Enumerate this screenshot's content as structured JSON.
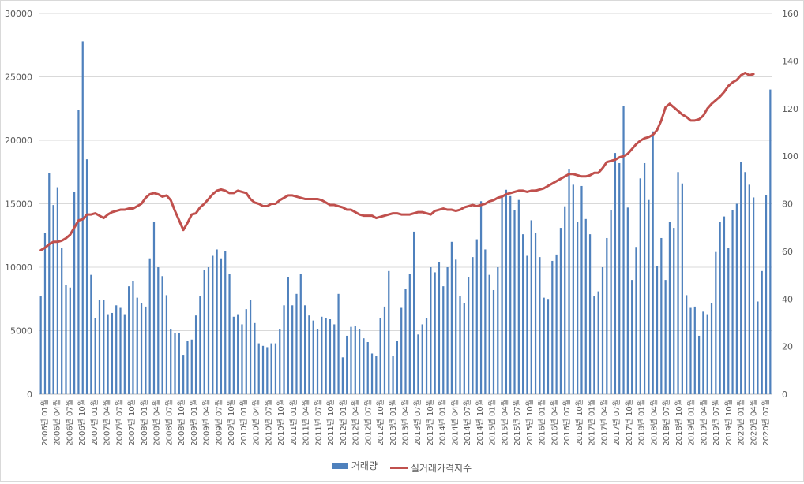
{
  "chart_data": {
    "type": "bar",
    "left_axis": {
      "ylim": [
        0,
        30000
      ],
      "ticks": [
        "0",
        "5000",
        "10000",
        "15000",
        "20000",
        "25000",
        "30000"
      ]
    },
    "right_axis": {
      "ylim": [
        0,
        160
      ],
      "ticks": [
        "0",
        "20",
        "40",
        "60",
        "80",
        "100",
        "120",
        "140",
        "160"
      ]
    },
    "grid": true,
    "legend_position": "bottom",
    "bar_color": "#4f81bd",
    "line_color": "#c0504d",
    "x_labels": [
      "2006년 01월",
      "2006년 04월",
      "2006년 07월",
      "2006년 10월",
      "2007년 01월",
      "2007년 04월",
      "2007년 07월",
      "2007년 10월",
      "2008년 01월",
      "2008년 04월",
      "2008년 07월",
      "2008년 10월",
      "2009년 01월",
      "2009년 04월",
      "2009년 07월",
      "2009년 10월",
      "2010년 01월",
      "2010년 04월",
      "2010년 07월",
      "2010년 10월",
      "2011년 01월",
      "2011년 04월",
      "2011년 07월",
      "2011년 10월",
      "2012년 01월",
      "2012년 04월",
      "2012년 07월",
      "2012년 10월",
      "2013년 01월",
      "2013년 04월",
      "2013년 07월",
      "2013년 10월",
      "2014년 01월",
      "2014년 04월",
      "2014년 07월",
      "2014년 10월",
      "2015년 01월",
      "2015년 04월",
      "2015년 07월",
      "2015년 10월",
      "2016년 01월",
      "2016년 04월",
      "2016년 07월",
      "2016년 10월",
      "2017년 01월",
      "2017년 04월",
      "2017년 07월",
      "2017년 10월",
      "2018년 01월",
      "2018년 04월",
      "2018년 07월",
      "2018년 10월",
      "2019년 01월",
      "2019년 04월",
      "2019년 07월",
      "2019년 10월",
      "2020년 01월",
      "2020년 04월",
      "2020년 07월"
    ],
    "series": [
      {
        "name": "거래량",
        "type": "bar",
        "axis": "left",
        "values": [
          7700,
          12700,
          17400,
          14900,
          16300,
          11500,
          8600,
          8400,
          15900,
          22400,
          27800,
          18500,
          9400,
          6000,
          7400,
          7400,
          6300,
          6400,
          7000,
          6800,
          6300,
          8500,
          8900,
          7600,
          7200,
          6900,
          10700,
          13600,
          10000,
          9300,
          7800,
          5100,
          4800,
          4800,
          3100,
          4200,
          4300,
          6200,
          7700,
          9800,
          10000,
          10900,
          11400,
          10700,
          11300,
          9500,
          6100,
          6300,
          5500,
          6700,
          7400,
          5600,
          4000,
          3800,
          3700,
          4000,
          4000,
          5100,
          7000,
          9200,
          7000,
          7900,
          9500,
          7000,
          6200,
          5800,
          5100,
          6100,
          6000,
          5900,
          5500,
          7900,
          2900,
          4600,
          5300,
          5400,
          5100,
          4400,
          4100,
          3200,
          3000,
          6000,
          6900,
          9700,
          3000,
          4200,
          6800,
          8300,
          9500,
          12800,
          4700,
          5500,
          6000,
          10000,
          9600,
          10400,
          8500,
          10000,
          12000,
          10600,
          7700,
          7200,
          9200,
          10800,
          12200,
          15200,
          11400,
          9400,
          8200,
          10000,
          15600,
          16100,
          15600,
          14500,
          15300,
          12600,
          10900,
          13700,
          12700,
          10800,
          7600,
          7500,
          10500,
          11000,
          13100,
          14800,
          17700,
          16500,
          13600,
          16400,
          13800,
          12600,
          7700,
          8100,
          10000,
          12300,
          14500,
          19000,
          18200,
          22700,
          14700,
          9000,
          11600,
          17000,
          18200,
          15300,
          20700,
          10100,
          12300,
          9000,
          13600,
          13100,
          17500,
          16600,
          7800,
          6800,
          6900,
          4600,
          6500,
          6300,
          7200,
          11200,
          13600,
          14000,
          11500,
          14500,
          15000,
          18300,
          17500,
          16500,
          15500,
          7300,
          9700,
          15700,
          24000
        ]
      },
      {
        "name": "실거래가격지수",
        "type": "line",
        "axis": "right",
        "values": [
          60.5,
          61.5,
          63,
          64,
          64,
          64.5,
          65.5,
          67,
          70,
          73,
          73.5,
          75.5,
          75.5,
          76,
          75,
          74,
          75.5,
          76.5,
          77,
          77.5,
          77.5,
          78,
          78,
          79,
          80,
          82.5,
          84,
          84.5,
          84,
          83,
          83.5,
          81.5,
          77,
          73,
          69,
          72,
          75.5,
          76,
          78.5,
          80,
          82,
          84,
          85.5,
          86,
          85.5,
          84.5,
          84.5,
          85.5,
          85,
          84.5,
          82,
          80.5,
          80,
          79,
          79,
          80,
          80,
          81.5,
          82.5,
          83.5,
          83.5,
          83,
          82.5,
          82,
          82,
          82,
          82,
          81.5,
          80.5,
          79.5,
          79.5,
          79,
          78.5,
          77.5,
          77.5,
          76.5,
          75.5,
          75,
          75,
          75,
          74,
          74.5,
          75,
          75.5,
          76,
          76,
          75.5,
          75.5,
          75.5,
          76,
          76.5,
          76.5,
          76,
          75.5,
          77,
          77.5,
          78,
          77.5,
          77.5,
          77,
          77.5,
          78.5,
          79,
          79.5,
          79,
          79.5,
          80,
          81,
          81.5,
          82.5,
          83,
          84,
          84.5,
          85,
          85.5,
          85.5,
          85,
          85.5,
          85.5,
          86,
          86.5,
          87.5,
          88.5,
          89.5,
          90.5,
          91.5,
          92.5,
          92.5,
          92,
          91.5,
          91.5,
          92,
          93,
          93,
          95,
          97.5,
          98,
          98.5,
          99.5,
          100,
          101,
          103,
          105,
          106.5,
          107.5,
          108,
          109,
          111,
          115,
          120.5,
          122,
          120.5,
          119,
          117.5,
          116.5,
          115,
          115,
          115.5,
          117,
          120,
          122,
          123.5,
          125,
          127,
          129.5,
          131,
          132,
          134,
          135,
          134,
          134.5
        ]
      }
    ]
  }
}
